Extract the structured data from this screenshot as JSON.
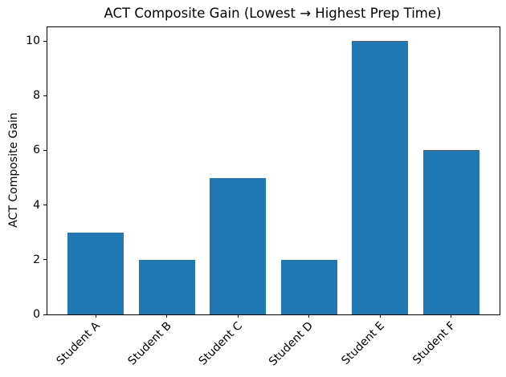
{
  "chart_data": {
    "type": "bar",
    "title": "ACT Composite Gain (Lowest → Highest Prep Time)",
    "xlabel": "",
    "ylabel": "ACT Composite Gain",
    "categories": [
      "Student A",
      "Student B",
      "Student C",
      "Student D",
      "Student E",
      "Student F"
    ],
    "values": [
      3,
      2,
      5,
      2,
      10,
      6
    ],
    "yticks": [
      0,
      2,
      4,
      6,
      8,
      10
    ],
    "ylim": [
      0,
      10.5
    ],
    "bar_color": "#1f77b4",
    "background_color": "#ffffff",
    "spine_color": "#000000",
    "grid": false,
    "legend": "none",
    "x_tick_label_rotation_deg": 45
  }
}
